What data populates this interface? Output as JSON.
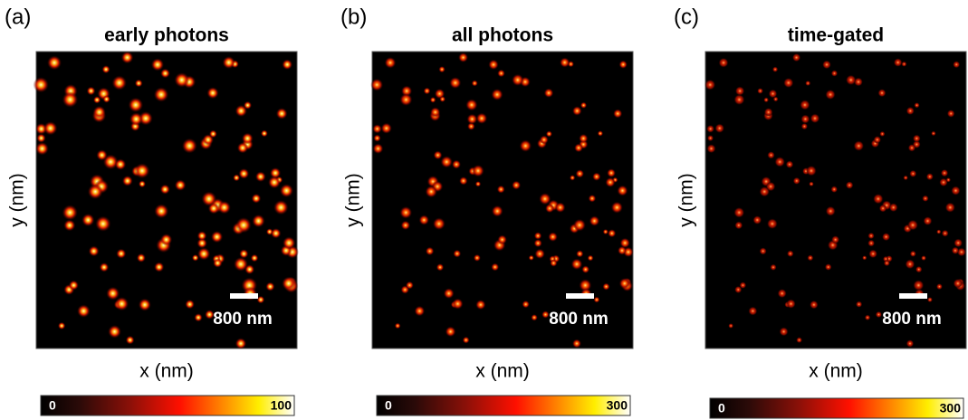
{
  "panels": [
    {
      "label": "(a)",
      "title": "early photons",
      "x_label": "x (nm)",
      "y_label": "y (nm)",
      "scale_bar": "800 nm",
      "colorbar": {
        "min": "0",
        "max": "100"
      }
    },
    {
      "label": "(b)",
      "title": "all photons",
      "x_label": "x (nm)",
      "y_label": "y (nm)",
      "scale_bar": "800 nm",
      "colorbar": {
        "min": "0",
        "max": "300"
      }
    },
    {
      "label": "(c)",
      "title": "time-gated",
      "x_label": "x (nm)",
      "y_label": "y (nm)",
      "scale_bar": "800 nm",
      "colorbar": {
        "min": "0",
        "max": "300"
      }
    }
  ]
}
